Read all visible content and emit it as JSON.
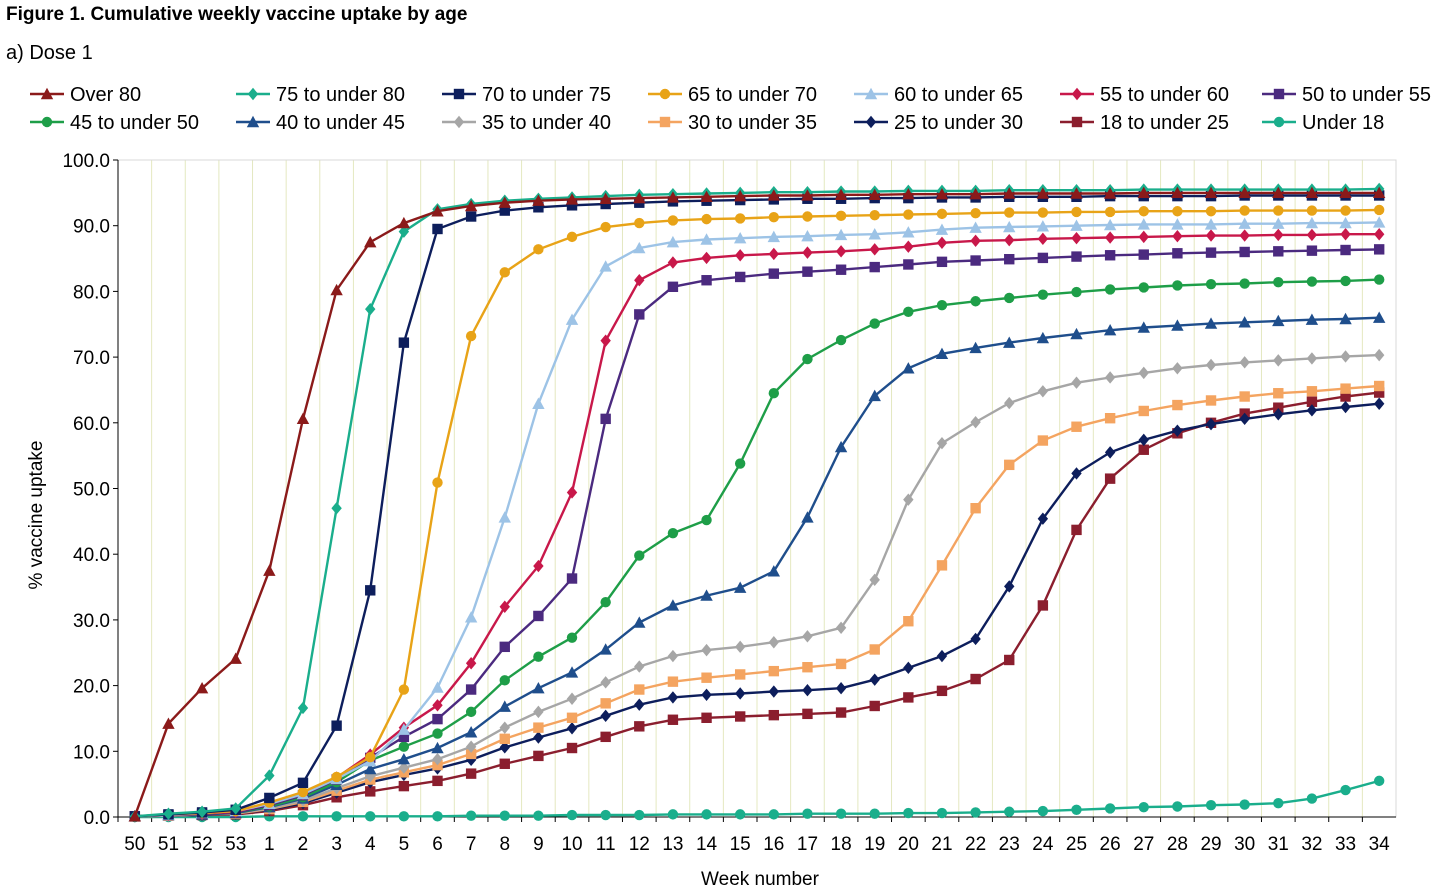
{
  "figure": {
    "title": "Figure 1. Cumulative weekly vaccine uptake by age",
    "subtitle": "a) Dose 1"
  },
  "chart_data": {
    "type": "line",
    "title": "Figure 1. Cumulative weekly vaccine uptake by age",
    "subtitle": "a) Dose 1",
    "xlabel": "Week number",
    "ylabel": "% vaccine uptake",
    "ylim": [
      0,
      100
    ],
    "yticks": [
      "0.0",
      "10.0",
      "20.0",
      "30.0",
      "40.0",
      "50.0",
      "60.0",
      "70.0",
      "80.0",
      "90.0",
      "100.0"
    ],
    "grid": "vertical",
    "legend_position": "top",
    "categories": [
      "50",
      "51",
      "52",
      "53",
      "1",
      "2",
      "3",
      "4",
      "5",
      "6",
      "7",
      "8",
      "9",
      "10",
      "11",
      "12",
      "13",
      "14",
      "15",
      "16",
      "17",
      "18",
      "19",
      "20",
      "21",
      "22",
      "23",
      "24",
      "25",
      "26",
      "27",
      "28",
      "29",
      "30",
      "31",
      "32",
      "33",
      "34"
    ],
    "series": [
      {
        "name": "Over 80",
        "color": "#8B1A1A",
        "marker": "triangle",
        "values": [
          0.1,
          14.2,
          19.6,
          24.1,
          37.5,
          60.6,
          80.2,
          87.5,
          90.4,
          92.2,
          93.0,
          93.5,
          93.8,
          94.0,
          94.1,
          94.2,
          94.3,
          94.4,
          94.5,
          94.6,
          94.6,
          94.7,
          94.7,
          94.8,
          94.8,
          94.8,
          94.9,
          94.9,
          94.9,
          94.9,
          95.0,
          95.0,
          95.0,
          95.0,
          95.0,
          95.0,
          95.0,
          95.0
        ]
      },
      {
        "name": "75 to under 80",
        "color": "#1AAE8C",
        "marker": "diamond",
        "values": [
          0.1,
          0.5,
          0.8,
          1.3,
          6.3,
          16.6,
          47.0,
          77.3,
          89.1,
          92.5,
          93.3,
          93.8,
          94.1,
          94.3,
          94.5,
          94.7,
          94.8,
          94.9,
          95.0,
          95.1,
          95.1,
          95.2,
          95.2,
          95.3,
          95.3,
          95.3,
          95.4,
          95.4,
          95.4,
          95.4,
          95.5,
          95.5,
          95.5,
          95.5,
          95.5,
          95.5,
          95.5,
          95.6
        ]
      },
      {
        "name": "70 to under 75",
        "color": "#0D1E5C",
        "marker": "square",
        "values": [
          0.1,
          0.4,
          0.7,
          1.1,
          2.9,
          5.2,
          13.9,
          34.5,
          72.2,
          89.5,
          91.4,
          92.3,
          92.8,
          93.1,
          93.3,
          93.5,
          93.7,
          93.8,
          93.9,
          94.0,
          94.1,
          94.1,
          94.2,
          94.2,
          94.3,
          94.3,
          94.4,
          94.4,
          94.4,
          94.5,
          94.5,
          94.5,
          94.5,
          94.6,
          94.6,
          94.6,
          94.6,
          94.6
        ]
      },
      {
        "name": "65 to under 70",
        "color": "#E8A317",
        "marker": "circle",
        "values": [
          0.1,
          0.4,
          0.6,
          0.9,
          2.2,
          3.8,
          6.1,
          9.1,
          19.4,
          50.9,
          73.2,
          82.9,
          86.4,
          88.3,
          89.8,
          90.4,
          90.8,
          91.0,
          91.1,
          91.3,
          91.4,
          91.5,
          91.6,
          91.7,
          91.8,
          91.9,
          92.0,
          92.0,
          92.1,
          92.1,
          92.2,
          92.2,
          92.2,
          92.3,
          92.3,
          92.3,
          92.3,
          92.4
        ]
      },
      {
        "name": "60 to under 65",
        "color": "#9DC3E6",
        "marker": "triangle",
        "values": [
          0.1,
          0.3,
          0.6,
          0.9,
          2.0,
          3.5,
          5.8,
          8.5,
          13.3,
          19.7,
          30.4,
          45.6,
          62.9,
          75.7,
          83.8,
          86.6,
          87.5,
          87.9,
          88.1,
          88.3,
          88.4,
          88.6,
          88.7,
          89.0,
          89.4,
          89.7,
          89.8,
          89.9,
          90.0,
          90.1,
          90.2,
          90.2,
          90.2,
          90.3,
          90.3,
          90.4,
          90.4,
          90.5
        ]
      },
      {
        "name": "55 to under 60",
        "color": "#C8184A",
        "marker": "diamond",
        "values": [
          0.1,
          0.3,
          0.5,
          0.8,
          2.0,
          3.5,
          6.0,
          9.5,
          13.6,
          17.0,
          23.4,
          32.0,
          38.2,
          49.4,
          72.5,
          81.7,
          84.4,
          85.1,
          85.5,
          85.7,
          85.9,
          86.1,
          86.4,
          86.8,
          87.4,
          87.7,
          87.8,
          88.0,
          88.1,
          88.2,
          88.3,
          88.4,
          88.5,
          88.5,
          88.6,
          88.6,
          88.7,
          88.7
        ]
      },
      {
        "name": "50 to under 55",
        "color": "#4B2A7F",
        "marker": "square",
        "values": [
          0.1,
          0.3,
          0.5,
          0.7,
          1.8,
          3.3,
          5.7,
          9.0,
          12.2,
          14.9,
          19.4,
          25.9,
          30.6,
          36.3,
          60.6,
          76.5,
          80.7,
          81.7,
          82.2,
          82.7,
          83.0,
          83.3,
          83.7,
          84.1,
          84.5,
          84.7,
          84.9,
          85.1,
          85.3,
          85.5,
          85.6,
          85.8,
          85.9,
          86.0,
          86.1,
          86.2,
          86.3,
          86.4
        ]
      },
      {
        "name": "45 to under 50",
        "color": "#1E9E48",
        "marker": "circle",
        "values": [
          0.1,
          0.3,
          0.5,
          0.7,
          1.6,
          3.0,
          5.3,
          8.6,
          10.7,
          12.7,
          16.0,
          20.8,
          24.4,
          27.3,
          32.7,
          39.8,
          43.2,
          45.2,
          53.8,
          64.5,
          69.7,
          72.6,
          75.1,
          76.9,
          77.9,
          78.5,
          79.0,
          79.5,
          79.9,
          80.3,
          80.6,
          80.9,
          81.1,
          81.2,
          81.4,
          81.5,
          81.6,
          81.8
        ]
      },
      {
        "name": "40 to under 45",
        "color": "#1F4E8C",
        "marker": "triangle",
        "values": [
          0.1,
          0.3,
          0.4,
          0.6,
          1.5,
          2.8,
          4.9,
          7.3,
          8.8,
          10.5,
          12.9,
          16.8,
          19.6,
          22.0,
          25.5,
          29.6,
          32.2,
          33.7,
          34.9,
          37.4,
          45.6,
          56.3,
          64.1,
          68.3,
          70.5,
          71.4,
          72.2,
          72.9,
          73.5,
          74.1,
          74.5,
          74.8,
          75.1,
          75.3,
          75.5,
          75.7,
          75.8,
          76.0
        ]
      },
      {
        "name": "35 to under 40",
        "color": "#A6A6A6",
        "marker": "diamond",
        "values": [
          0.1,
          0.2,
          0.4,
          0.6,
          1.3,
          2.5,
          4.4,
          6.2,
          7.5,
          8.8,
          10.7,
          13.6,
          16.0,
          18.0,
          20.5,
          22.9,
          24.5,
          25.4,
          25.9,
          26.6,
          27.5,
          28.8,
          36.1,
          48.3,
          56.9,
          60.1,
          63.0,
          64.8,
          66.1,
          66.9,
          67.6,
          68.3,
          68.8,
          69.2,
          69.5,
          69.8,
          70.1,
          70.3
        ]
      },
      {
        "name": "30 to under 35",
        "color": "#F4A460",
        "marker": "square",
        "values": [
          0.1,
          0.2,
          0.4,
          0.5,
          1.2,
          2.3,
          4.0,
          5.7,
          6.8,
          7.9,
          9.6,
          11.9,
          13.6,
          15.1,
          17.3,
          19.4,
          20.6,
          21.2,
          21.7,
          22.2,
          22.8,
          23.3,
          25.5,
          29.8,
          38.3,
          47.0,
          53.6,
          57.3,
          59.4,
          60.7,
          61.8,
          62.7,
          63.4,
          64.0,
          64.5,
          64.8,
          65.2,
          65.6
        ]
      },
      {
        "name": "25 to under 30",
        "color": "#0D1E5C",
        "marker": "diamond",
        "values": [
          0.1,
          0.2,
          0.3,
          0.5,
          1.1,
          2.1,
          3.7,
          5.3,
          6.4,
          7.4,
          8.7,
          10.6,
          12.1,
          13.5,
          15.4,
          17.1,
          18.2,
          18.6,
          18.8,
          19.1,
          19.3,
          19.6,
          20.9,
          22.7,
          24.5,
          27.1,
          35.1,
          45.4,
          52.3,
          55.5,
          57.4,
          58.8,
          59.8,
          60.6,
          61.3,
          61.9,
          62.4,
          62.9
        ]
      },
      {
        "name": "18 to under 25",
        "color": "#8B1E2E",
        "marker": "square",
        "values": [
          0.1,
          0.2,
          0.3,
          0.4,
          0.9,
          1.8,
          3.0,
          3.9,
          4.7,
          5.5,
          6.6,
          8.1,
          9.3,
          10.5,
          12.2,
          13.8,
          14.8,
          15.1,
          15.3,
          15.5,
          15.7,
          15.9,
          16.9,
          18.2,
          19.2,
          21.0,
          23.9,
          32.2,
          43.7,
          51.5,
          55.9,
          58.4,
          60.0,
          61.4,
          62.3,
          63.2,
          64.0,
          64.6
        ]
      },
      {
        "name": "Under 18",
        "color": "#1AAE8C",
        "marker": "circle",
        "values": [
          0.0,
          0.0,
          0.0,
          0.0,
          0.1,
          0.1,
          0.1,
          0.1,
          0.1,
          0.1,
          0.2,
          0.2,
          0.2,
          0.3,
          0.3,
          0.3,
          0.4,
          0.4,
          0.4,
          0.4,
          0.5,
          0.5,
          0.5,
          0.6,
          0.6,
          0.7,
          0.8,
          0.9,
          1.1,
          1.3,
          1.5,
          1.6,
          1.8,
          1.9,
          2.1,
          2.8,
          4.1,
          5.5
        ]
      }
    ]
  }
}
